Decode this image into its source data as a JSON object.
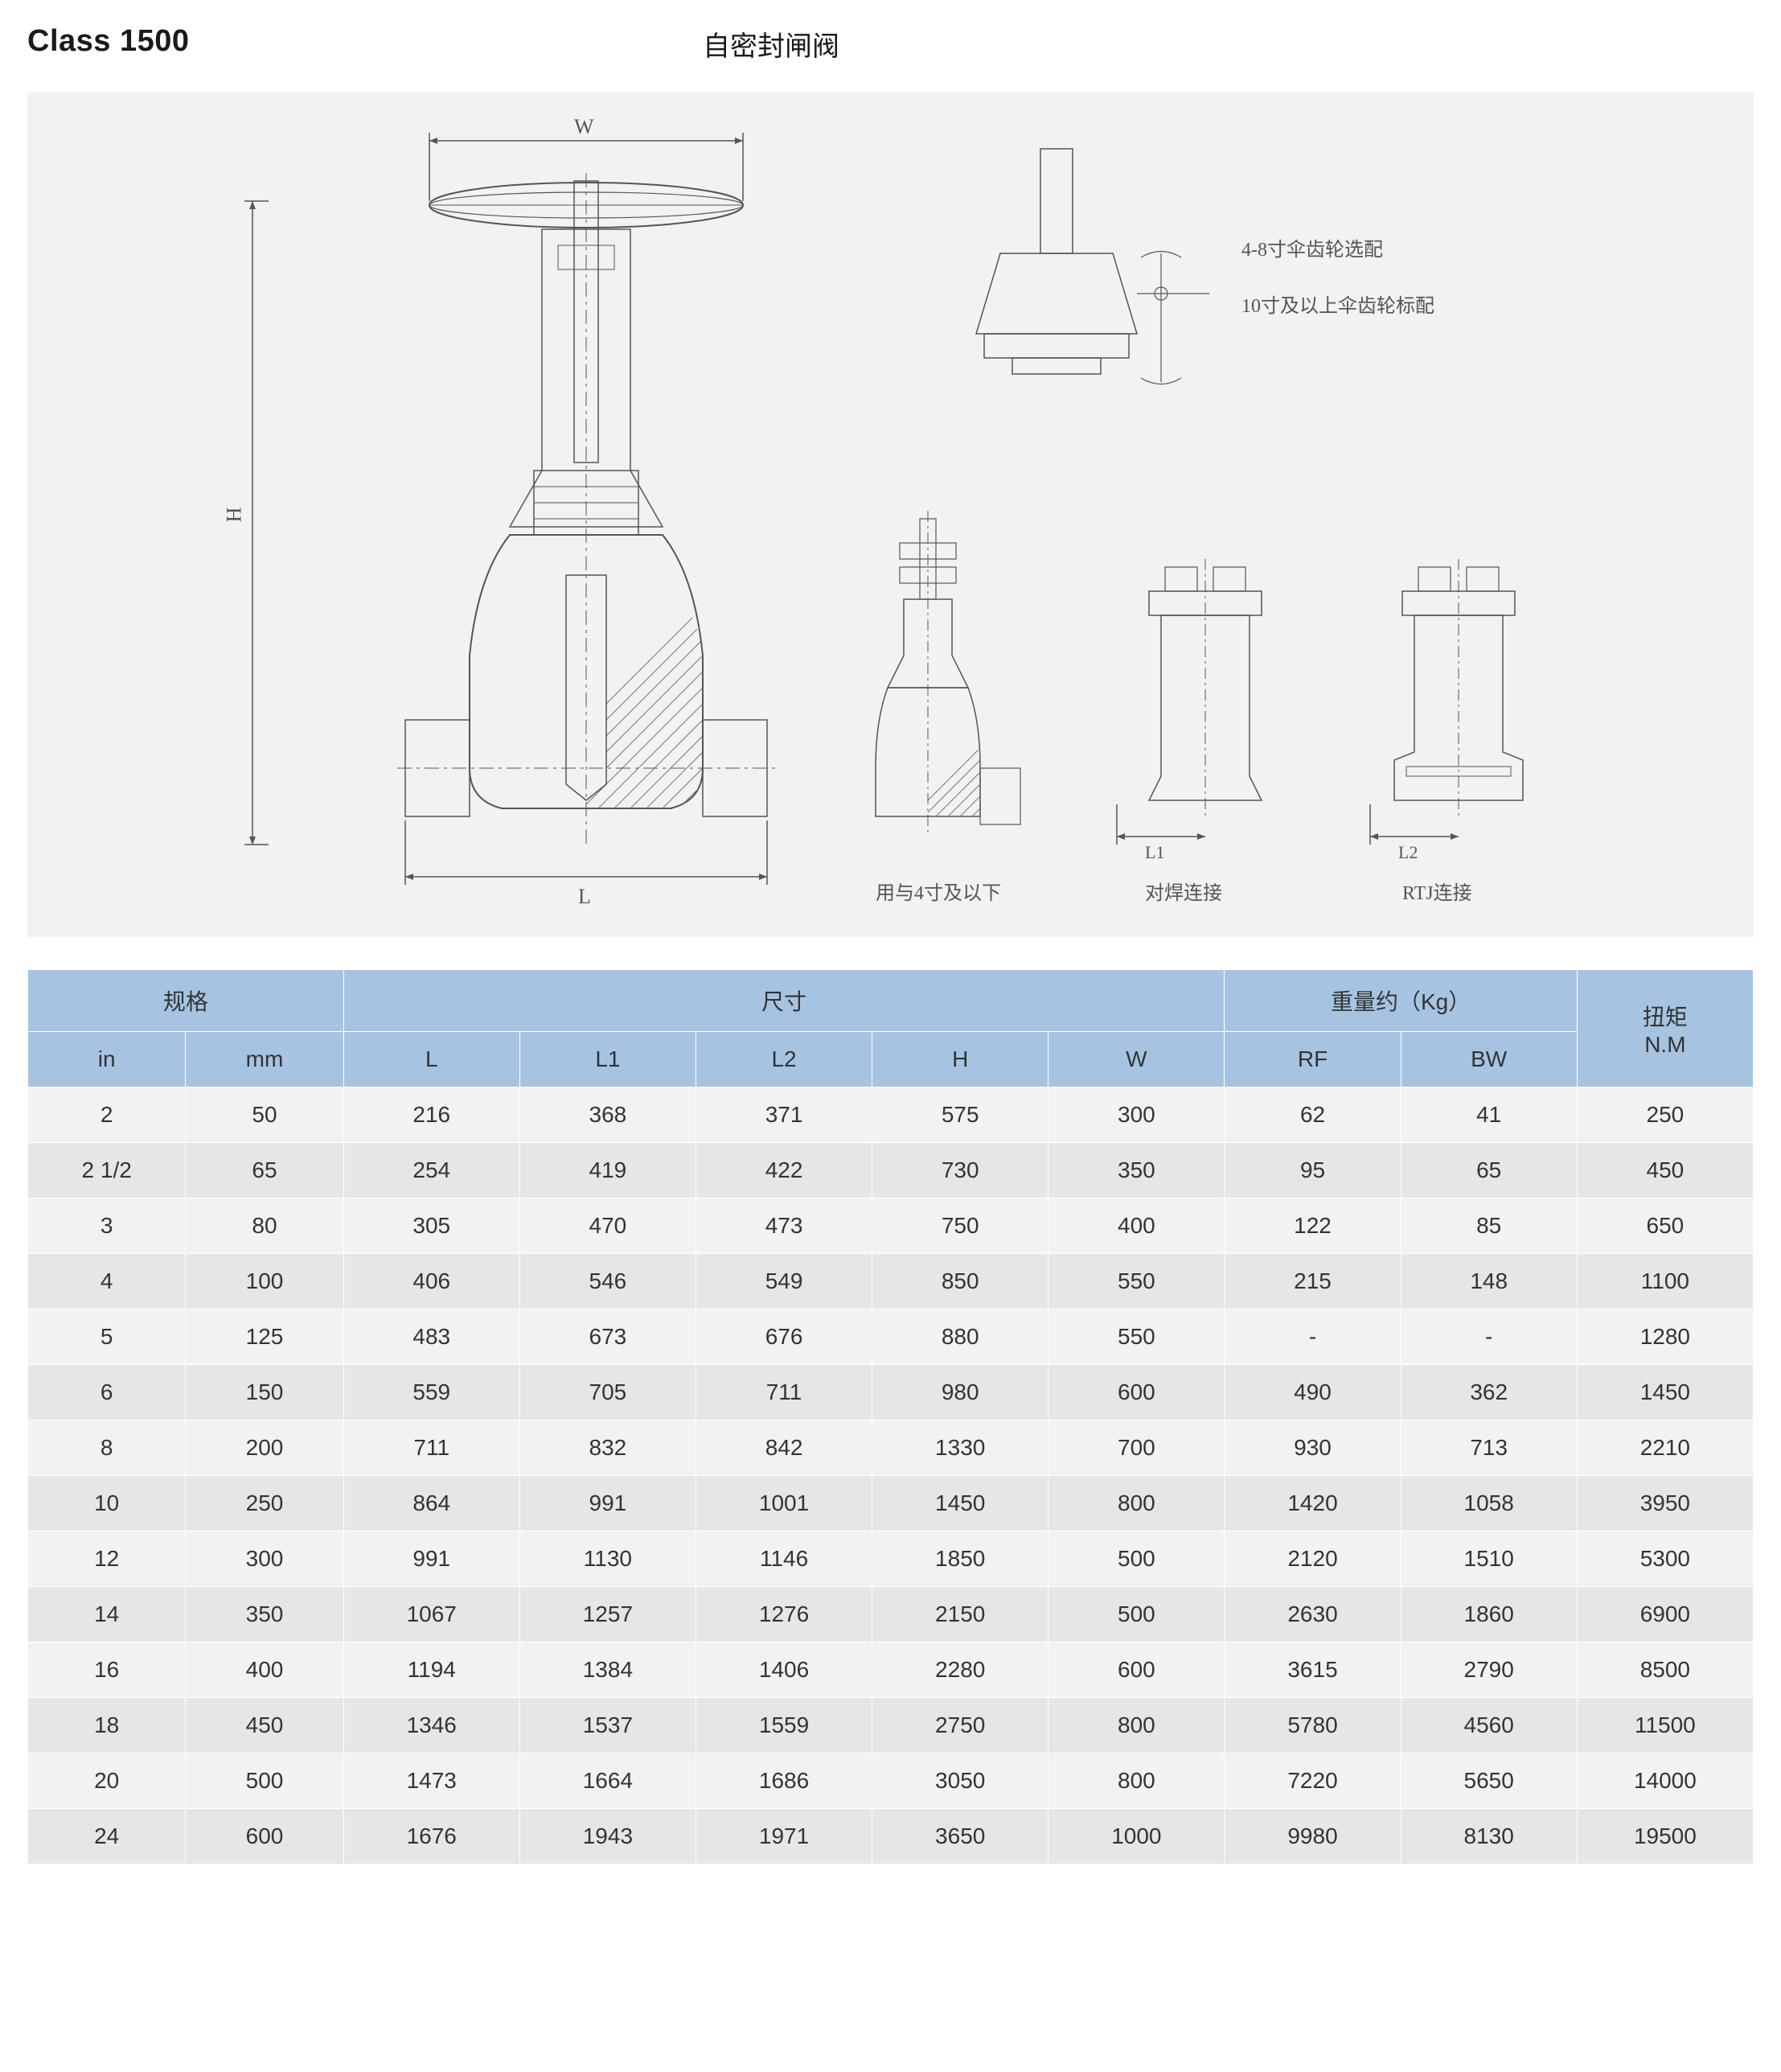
{
  "header": {
    "class_label": "Class 1500",
    "product_name": "自密封闸阀"
  },
  "diagram": {
    "dim_W": "W",
    "dim_H": "H",
    "dim_L": "L",
    "dim_L1": "L1",
    "dim_L2": "L2",
    "annot_top1": "4-8寸伞齿轮选配",
    "annot_top2": "10寸及以上伞齿轮标配",
    "annot_small_valve": "用与4寸及以下",
    "annot_bw": "对焊连接",
    "annot_rtj": "RTJ连接"
  },
  "table": {
    "group_spec": "规格",
    "group_dim": "尺寸",
    "group_weight": "重量约（Kg）",
    "group_torque": "扭矩\nN.M",
    "col_in": "in",
    "col_mm": "mm",
    "col_L": "L",
    "col_L1": "L1",
    "col_L2": "L2",
    "col_H": "H",
    "col_W": "W",
    "col_RF": "RF",
    "col_BW": "BW",
    "rows": [
      {
        "in": "2",
        "mm": "50",
        "L": "216",
        "L1": "368",
        "L2": "371",
        "H": "575",
        "W": "300",
        "RF": "62",
        "BW": "41",
        "NM": "250"
      },
      {
        "in": "2 1/2",
        "mm": "65",
        "L": "254",
        "L1": "419",
        "L2": "422",
        "H": "730",
        "W": "350",
        "RF": "95",
        "BW": "65",
        "NM": "450"
      },
      {
        "in": "3",
        "mm": "80",
        "L": "305",
        "L1": "470",
        "L2": "473",
        "H": "750",
        "W": "400",
        "RF": "122",
        "BW": "85",
        "NM": "650"
      },
      {
        "in": "4",
        "mm": "100",
        "L": "406",
        "L1": "546",
        "L2": "549",
        "H": "850",
        "W": "550",
        "RF": "215",
        "BW": "148",
        "NM": "1100"
      },
      {
        "in": "5",
        "mm": "125",
        "L": "483",
        "L1": "673",
        "L2": "676",
        "H": "880",
        "W": "550",
        "RF": "-",
        "BW": "-",
        "NM": "1280"
      },
      {
        "in": "6",
        "mm": "150",
        "L": "559",
        "L1": "705",
        "L2": "711",
        "H": "980",
        "W": "600",
        "RF": "490",
        "BW": "362",
        "NM": "1450"
      },
      {
        "in": "8",
        "mm": "200",
        "L": "711",
        "L1": "832",
        "L2": "842",
        "H": "1330",
        "W": "700",
        "RF": "930",
        "BW": "713",
        "NM": "2210"
      },
      {
        "in": "10",
        "mm": "250",
        "L": "864",
        "L1": "991",
        "L2": "1001",
        "H": "1450",
        "W": "800",
        "RF": "1420",
        "BW": "1058",
        "NM": "3950"
      },
      {
        "in": "12",
        "mm": "300",
        "L": "991",
        "L1": "1130",
        "L2": "1146",
        "H": "1850",
        "W": "500",
        "RF": "2120",
        "BW": "1510",
        "NM": "5300"
      },
      {
        "in": "14",
        "mm": "350",
        "L": "1067",
        "L1": "1257",
        "L2": "1276",
        "H": "2150",
        "W": "500",
        "RF": "2630",
        "BW": "1860",
        "NM": "6900"
      },
      {
        "in": "16",
        "mm": "400",
        "L": "1194",
        "L1": "1384",
        "L2": "1406",
        "H": "2280",
        "W": "600",
        "RF": "3615",
        "BW": "2790",
        "NM": "8500"
      },
      {
        "in": "18",
        "mm": "450",
        "L": "1346",
        "L1": "1537",
        "L2": "1559",
        "H": "2750",
        "W": "800",
        "RF": "5780",
        "BW": "4560",
        "NM": "11500"
      },
      {
        "in": "20",
        "mm": "500",
        "L": "1473",
        "L1": "1664",
        "L2": "1686",
        "H": "3050",
        "W": "800",
        "RF": "7220",
        "BW": "5650",
        "NM": "14000"
      },
      {
        "in": "24",
        "mm": "600",
        "L": "1676",
        "L1": "1943",
        "L2": "1971",
        "H": "3650",
        "W": "1000",
        "RF": "9980",
        "BW": "8130",
        "NM": "19500"
      }
    ]
  }
}
